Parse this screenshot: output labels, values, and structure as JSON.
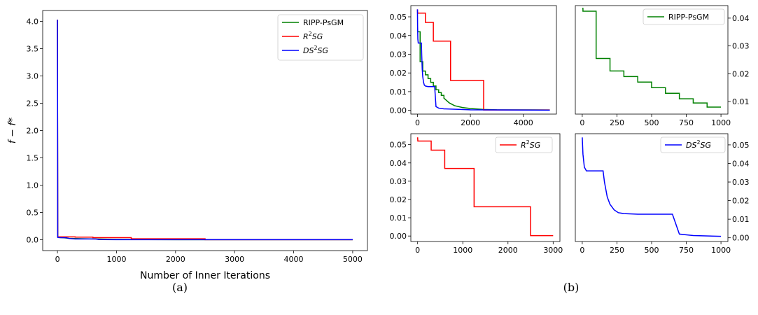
{
  "captions": {
    "a": "(a)",
    "b": "(b)"
  },
  "colors": {
    "ripp": "#008000",
    "r2sg": "#ff0000",
    "ds2sg": "#0000ff"
  },
  "chart_data": [
    {
      "id": "a",
      "type": "line",
      "xlabel": "Number of Inner Iterations",
      "ylabel": "f − f*",
      "xlim": [
        -250,
        5250
      ],
      "ylim": [
        -0.2,
        4.2
      ],
      "xticks": [
        0,
        1000,
        2000,
        3000,
        4000,
        5000
      ],
      "yticks": [
        0.0,
        0.5,
        1.0,
        1.5,
        2.0,
        2.5,
        3.0,
        3.5,
        4.0
      ],
      "legend": "top-right",
      "series": [
        {
          "name": "RIPP-PsGM",
          "color": "#008000",
          "x": [
            0,
            5,
            20,
            100,
            200,
            400,
            700,
            1000,
            1500,
            2500,
            5000
          ],
          "y": [
            4.03,
            0.05,
            0.04,
            0.035,
            0.025,
            0.018,
            0.012,
            0.006,
            0.002,
            0.0005,
            0.0002
          ]
        },
        {
          "name": "R²SG",
          "color": "#ff0000",
          "x": [
            0,
            5,
            10,
            20,
            100,
            300,
            300,
            600,
            600,
            1250,
            1250,
            2500,
            2500,
            5000
          ],
          "y": [
            4.03,
            0.06,
            0.054,
            0.052,
            0.052,
            0.052,
            0.047,
            0.047,
            0.037,
            0.037,
            0.016,
            0.016,
            0.0002,
            0.0002
          ]
        },
        {
          "name": "DS²SG",
          "color": "#0000ff",
          "x": [
            0,
            5,
            50,
            150,
            200,
            300,
            650,
            700,
            1000,
            5000
          ],
          "y": [
            4.03,
            0.04,
            0.037,
            0.036,
            0.022,
            0.013,
            0.013,
            0.002,
            0.0005,
            0.0001
          ]
        }
      ]
    },
    {
      "id": "b1",
      "type": "line",
      "xlim": [
        -250,
        5250
      ],
      "ylim": [
        -0.002,
        0.056
      ],
      "xticks": [
        0,
        2000,
        4000
      ],
      "yticks": [
        0.0,
        0.01,
        0.02,
        0.03,
        0.04,
        0.05
      ],
      "ytick_labels": [
        "0.00",
        "0.01",
        "0.02",
        "0.03",
        "0.04",
        "0.05"
      ],
      "series": [
        {
          "name": "RIPP-PsGM",
          "color": "#008000",
          "x": [
            0,
            100,
            100,
            200,
            200,
            300,
            300,
            400,
            400,
            500,
            500,
            600,
            600,
            700,
            700,
            800,
            800,
            900,
            900,
            1000,
            1000,
            1200,
            1400,
            1700,
            2000,
            2500,
            3000,
            5000
          ],
          "y": [
            0.042,
            0.042,
            0.026,
            0.026,
            0.021,
            0.021,
            0.019,
            0.019,
            0.017,
            0.017,
            0.015,
            0.015,
            0.013,
            0.013,
            0.011,
            0.011,
            0.0095,
            0.0095,
            0.008,
            0.008,
            0.0065,
            0.004,
            0.0025,
            0.0015,
            0.001,
            0.0005,
            0.0003,
            0.0002
          ]
        },
        {
          "name": "R²SG",
          "color": "#ff0000",
          "x": [
            0,
            5,
            10,
            20,
            300,
            300,
            600,
            600,
            1250,
            1250,
            2500,
            2500,
            5000
          ],
          "y": [
            0.054,
            0.052,
            0.052,
            0.052,
            0.052,
            0.047,
            0.047,
            0.037,
            0.037,
            0.016,
            0.016,
            0.0002,
            0.0002
          ]
        },
        {
          "name": "DS²SG",
          "color": "#0000ff",
          "x": [
            0,
            5,
            15,
            30,
            60,
            100,
            150,
            160,
            180,
            200,
            230,
            260,
            300,
            400,
            650,
            700,
            800,
            1000,
            2000,
            5000
          ],
          "y": [
            0.054,
            0.045,
            0.038,
            0.036,
            0.036,
            0.036,
            0.036,
            0.03,
            0.022,
            0.018,
            0.015,
            0.0135,
            0.013,
            0.0127,
            0.0127,
            0.002,
            0.0012,
            0.0008,
            0.0003,
            0.0001
          ]
        }
      ]
    },
    {
      "id": "b2",
      "type": "line",
      "xlim": [
        -50,
        1050
      ],
      "ylim": [
        0.0055,
        0.0445
      ],
      "xticks": [
        0,
        250,
        500,
        750,
        1000
      ],
      "yticks": [
        0.01,
        0.02,
        0.03,
        0.04
      ],
      "ytick_labels": [
        "0.01",
        "0.02",
        "0.03",
        "0.04"
      ],
      "legend": "top-right",
      "series": [
        {
          "name": "RIPP-PsGM",
          "color": "#008000",
          "x": [
            0,
            5,
            5,
            100,
            100,
            200,
            200,
            300,
            300,
            400,
            400,
            500,
            500,
            600,
            600,
            700,
            700,
            800,
            800,
            900,
            900,
            1000
          ],
          "y": [
            0.0435,
            0.0435,
            0.0425,
            0.0425,
            0.0255,
            0.0255,
            0.021,
            0.021,
            0.019,
            0.019,
            0.017,
            0.017,
            0.015,
            0.015,
            0.013,
            0.013,
            0.011,
            0.011,
            0.0095,
            0.0095,
            0.008,
            0.008
          ]
        }
      ]
    },
    {
      "id": "b3",
      "type": "line",
      "xlim": [
        -150,
        3150
      ],
      "ylim": [
        -0.003,
        0.056
      ],
      "xticks": [
        0,
        1000,
        2000,
        3000
      ],
      "yticks": [
        0.0,
        0.01,
        0.02,
        0.03,
        0.04,
        0.05
      ],
      "ytick_labels": [
        "0.00",
        "0.01",
        "0.02",
        "0.03",
        "0.04",
        "0.05"
      ],
      "legend": "top-right",
      "series": [
        {
          "name": "R²SG",
          "color": "#ff0000",
          "x": [
            0,
            5,
            10,
            20,
            300,
            300,
            600,
            600,
            1250,
            1250,
            2500,
            2500,
            3000
          ],
          "y": [
            0.054,
            0.052,
            0.052,
            0.052,
            0.052,
            0.047,
            0.047,
            0.037,
            0.037,
            0.016,
            0.016,
            0.0002,
            0.0002
          ]
        }
      ]
    },
    {
      "id": "b4",
      "type": "line",
      "xlim": [
        -50,
        1050
      ],
      "ylim": [
        -0.002,
        0.056
      ],
      "xticks": [
        0,
        250,
        500,
        750,
        1000
      ],
      "yticks": [
        0.0,
        0.01,
        0.02,
        0.03,
        0.04,
        0.05
      ],
      "ytick_labels": [
        "0.00",
        "0.01",
        "0.02",
        "0.03",
        "0.04",
        "0.05"
      ],
      "legend": "top-right",
      "series": [
        {
          "name": "DS²SG",
          "color": "#0000ff",
          "x": [
            0,
            5,
            15,
            30,
            60,
            100,
            150,
            160,
            180,
            200,
            230,
            260,
            300,
            400,
            650,
            700,
            800,
            1000
          ],
          "y": [
            0.054,
            0.045,
            0.038,
            0.036,
            0.036,
            0.036,
            0.036,
            0.03,
            0.022,
            0.018,
            0.015,
            0.0135,
            0.013,
            0.0127,
            0.0127,
            0.002,
            0.0012,
            0.0008
          ]
        }
      ]
    }
  ]
}
